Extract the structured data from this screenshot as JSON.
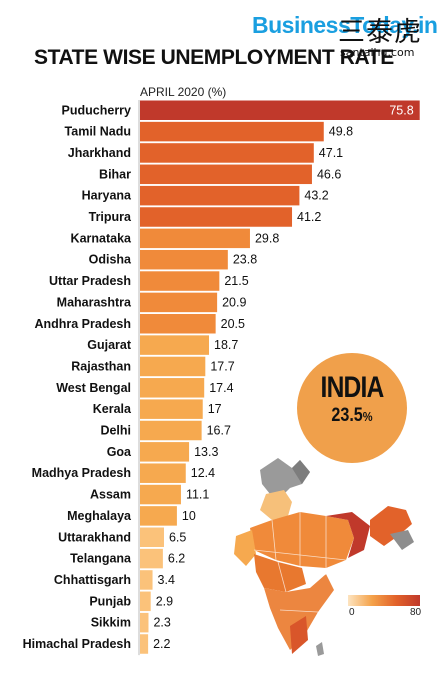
{
  "brand": "BusinessToday.in",
  "watermark": {
    "cn": "三泰虎",
    "url": "santaihu.com"
  },
  "chart_data": {
    "type": "bar",
    "orientation": "horizontal",
    "title": "STATE WISE UNEMPLOYMENT RATE",
    "subtitle": "APRIL 2020 (%)",
    "xlim": [
      0,
      80
    ],
    "categories": [
      "Puducherry",
      "Tamil Nadu",
      "Jharkhand",
      "Bihar",
      "Haryana",
      "Tripura",
      "Karnataka",
      "Odisha",
      "Uttar Pradesh",
      "Maharashtra",
      "Andhra Pradesh",
      "Gujarat",
      "Rajasthan",
      "West Bengal",
      "Kerala",
      "Delhi",
      "Goa",
      "Madhya Pradesh",
      "Assam",
      "Meghalaya",
      "Uttarakhand",
      "Telangana",
      "Chhattisgarh",
      "Punjab",
      "Sikkim",
      "Himachal Pradesh"
    ],
    "values": [
      75.8,
      49.8,
      47.1,
      46.6,
      43.2,
      41.2,
      29.8,
      23.8,
      21.5,
      20.9,
      20.5,
      18.7,
      17.7,
      17.4,
      17,
      16.7,
      13.3,
      12.4,
      11.1,
      10,
      6.5,
      6.2,
      3.4,
      2.9,
      2.3,
      2.2
    ],
    "value_labels": [
      "75.8",
      "49.8",
      "47.1",
      "46.6",
      "43.2",
      "41.2",
      "29.8",
      "23.8",
      "21.5",
      "20.9",
      "20.5",
      "18.7",
      "17.7",
      "17.4",
      "17",
      "16.7",
      "13.3",
      "12.4",
      "11.1",
      "10",
      "6.5",
      "6.2",
      "3.4",
      "2.9",
      "2.3",
      "2.2"
    ],
    "colors": {
      "top": "#c0392b",
      "high": "#e2622a",
      "mid": "#f08a3a",
      "low": "#f6a94f",
      "lowest": "#fbc27a"
    }
  },
  "india": {
    "label": "INDIA",
    "value": "23.5",
    "unit": "%"
  },
  "legend": {
    "min": "0",
    "max": "80"
  }
}
